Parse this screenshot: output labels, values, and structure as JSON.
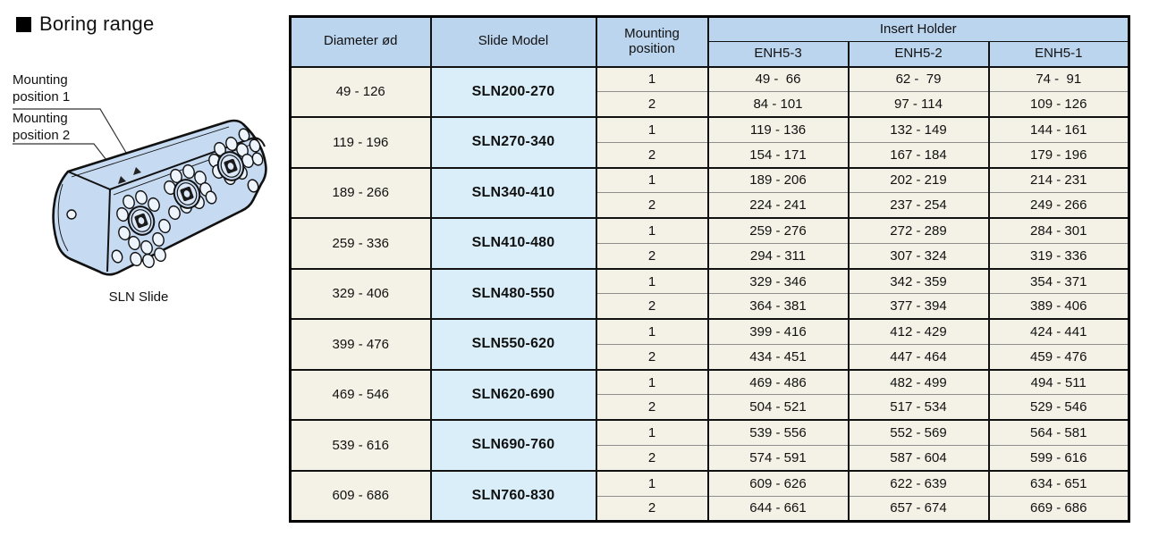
{
  "title": {
    "text": "Boring range"
  },
  "diagram": {
    "label_position1": "Mounting position 1",
    "label_position2": "Mounting position 2",
    "caption": "SLN Slide"
  },
  "table": {
    "col_diameter": "Diameter ød",
    "col_slide_model": "Slide Model",
    "col_mounting_position": "Mounting position",
    "col_insert_holder": "Insert Holder",
    "insert_holder_models": [
      "ENH5-3",
      "ENH5-2",
      "ENH5-1"
    ],
    "rows": [
      {
        "diameter": "49 - 126",
        "model": "SLN200-270",
        "positions": [
          {
            "pos": "1",
            "ranges": [
              "49 -  66",
              "62 -  79",
              "74 -  91"
            ]
          },
          {
            "pos": "2",
            "ranges": [
              "84 - 101",
              "97 - 114",
              "109 - 126"
            ]
          }
        ]
      },
      {
        "diameter": "119 - 196",
        "model": "SLN270-340",
        "positions": [
          {
            "pos": "1",
            "ranges": [
              "119 - 136",
              "132 - 149",
              "144 - 161"
            ]
          },
          {
            "pos": "2",
            "ranges": [
              "154 - 171",
              "167 - 184",
              "179 - 196"
            ]
          }
        ]
      },
      {
        "diameter": "189 - 266",
        "model": "SLN340-410",
        "positions": [
          {
            "pos": "1",
            "ranges": [
              "189 - 206",
              "202 - 219",
              "214 - 231"
            ]
          },
          {
            "pos": "2",
            "ranges": [
              "224 - 241",
              "237 - 254",
              "249 - 266"
            ]
          }
        ]
      },
      {
        "diameter": "259 - 336",
        "model": "SLN410-480",
        "positions": [
          {
            "pos": "1",
            "ranges": [
              "259 - 276",
              "272 - 289",
              "284 - 301"
            ]
          },
          {
            "pos": "2",
            "ranges": [
              "294 - 311",
              "307 - 324",
              "319 - 336"
            ]
          }
        ]
      },
      {
        "diameter": "329 - 406",
        "model": "SLN480-550",
        "positions": [
          {
            "pos": "1",
            "ranges": [
              "329 - 346",
              "342 - 359",
              "354 - 371"
            ]
          },
          {
            "pos": "2",
            "ranges": [
              "364 - 381",
              "377 - 394",
              "389 - 406"
            ]
          }
        ]
      },
      {
        "diameter": "399 - 476",
        "model": "SLN550-620",
        "positions": [
          {
            "pos": "1",
            "ranges": [
              "399 - 416",
              "412 - 429",
              "424 - 441"
            ]
          },
          {
            "pos": "2",
            "ranges": [
              "434 - 451",
              "447 - 464",
              "459 - 476"
            ]
          }
        ]
      },
      {
        "diameter": "469 - 546",
        "model": "SLN620-690",
        "positions": [
          {
            "pos": "1",
            "ranges": [
              "469 - 486",
              "482 - 499",
              "494 - 511"
            ]
          },
          {
            "pos": "2",
            "ranges": [
              "504 - 521",
              "517 - 534",
              "529 - 546"
            ]
          }
        ]
      },
      {
        "diameter": "539 - 616",
        "model": "SLN690-760",
        "positions": [
          {
            "pos": "1",
            "ranges": [
              "539 - 556",
              "552 - 569",
              "564 - 581"
            ]
          },
          {
            "pos": "2",
            "ranges": [
              "574 - 591",
              "587 - 604",
              "599 - 616"
            ]
          }
        ]
      },
      {
        "diameter": "609 - 686",
        "model": "SLN760-830",
        "positions": [
          {
            "pos": "1",
            "ranges": [
              "609 - 626",
              "622 - 639",
              "634 - 651"
            ]
          },
          {
            "pos": "2",
            "ranges": [
              "644 - 661",
              "657 - 674",
              "669 - 686"
            ]
          }
        ]
      }
    ]
  },
  "colors": {
    "header_bg": "#bcd5ee",
    "row_bg": "#f4f1e6",
    "model_bg": "#d9eef8",
    "diagram_fill": "#c6daf2",
    "border": "#111111",
    "thin_line": "#8e8e8e"
  }
}
